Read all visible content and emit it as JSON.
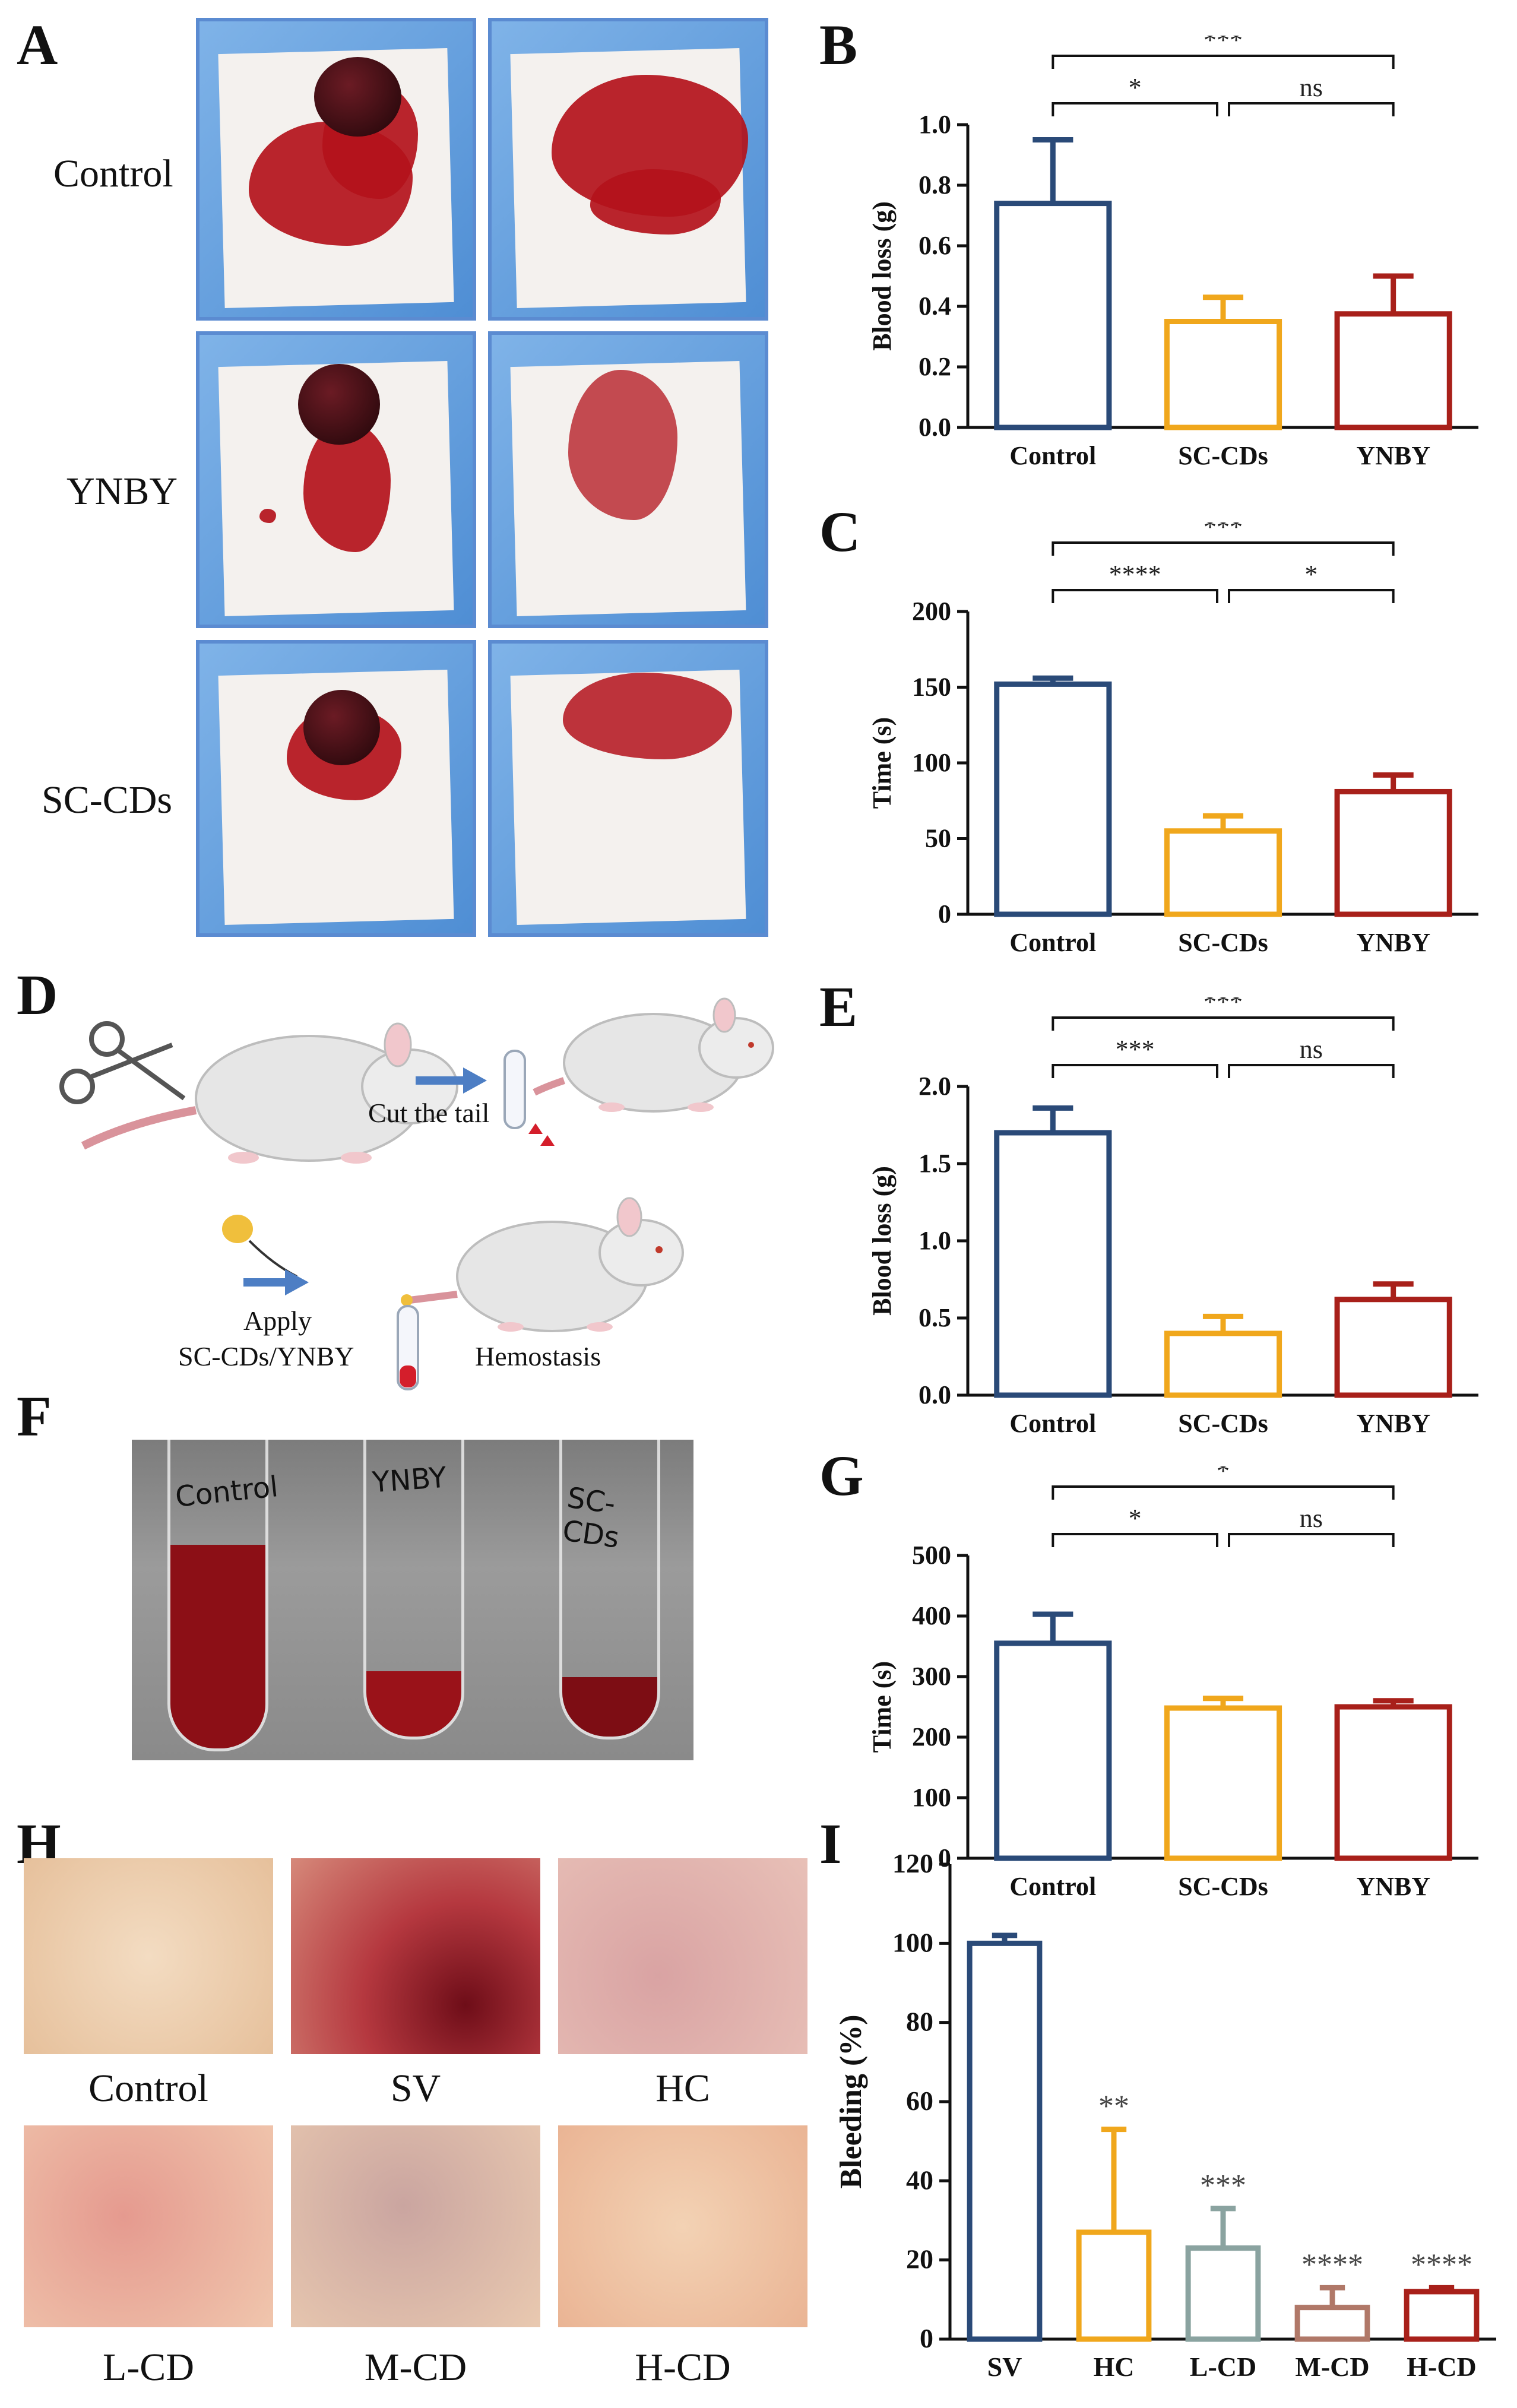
{
  "panels": {
    "A": {
      "label": "A",
      "rows": [
        {
          "label": "Control",
          "variant": "heavy"
        },
        {
          "label": "YNBY",
          "variant": "mid"
        },
        {
          "label": "SC-CDs",
          "variant": "light"
        }
      ]
    },
    "D": {
      "label": "D",
      "step1_text": "Cut the tail",
      "step2_text_line1": "Apply",
      "step2_text_line2": "SC-CDs/YNBY",
      "step3_text": "Hemostasis"
    },
    "F": {
      "label": "F",
      "tube_labels": [
        "Control",
        "YNBY",
        "SC-CDs"
      ]
    },
    "H": {
      "label": "H",
      "images": [
        {
          "label": "Control",
          "tone": "clear"
        },
        {
          "label": "SV",
          "tone": "bloody"
        },
        {
          "label": "HC",
          "tone": "pinkish"
        },
        {
          "label": "L-CD",
          "tone": "slight"
        },
        {
          "label": "M-CD",
          "tone": "slight"
        },
        {
          "label": "H-CD",
          "tone": "clear"
        }
      ]
    }
  },
  "colors": {
    "control": "#2a4a78",
    "sccds": "#f0a71c",
    "ynby": "#a8201a",
    "hc": "#f0a71c",
    "lcd": "#8aa3a0",
    "mcd": "#b07868",
    "hcd": "#a8201a"
  },
  "chart_data": [
    {
      "id": "B",
      "label": "B",
      "type": "bar",
      "categories": [
        "Control",
        "SC-CDs",
        "YNBY"
      ],
      "values": [
        0.74,
        0.35,
        0.375
      ],
      "errors": [
        0.21,
        0.08,
        0.125
      ],
      "ylabel": "Blood loss (g)",
      "ylim": [
        0,
        1.0
      ],
      "yticks": [
        "0.0",
        "0.2",
        "0.4",
        "0.6",
        "0.8",
        "1.0"
      ],
      "significance": [
        {
          "from": 0,
          "to": 1,
          "text": "*",
          "level": 1
        },
        {
          "from": 1,
          "to": 2,
          "text": "ns",
          "level": 1
        },
        {
          "from": 0,
          "to": 2,
          "text": "***",
          "level": 2
        }
      ]
    },
    {
      "id": "C",
      "label": "C",
      "type": "bar",
      "categories": [
        "Control",
        "SC-CDs",
        "YNBY"
      ],
      "values": [
        152,
        55,
        81
      ],
      "errors": [
        4,
        10,
        11
      ],
      "ylabel": "Time (s)",
      "ylim": [
        0,
        200
      ],
      "yticks": [
        "0",
        "50",
        "100",
        "150",
        "200"
      ],
      "significance": [
        {
          "from": 0,
          "to": 1,
          "text": "****",
          "level": 1
        },
        {
          "from": 1,
          "to": 2,
          "text": "*",
          "level": 1
        },
        {
          "from": 0,
          "to": 2,
          "text": "***",
          "level": 2
        }
      ]
    },
    {
      "id": "E",
      "label": "E",
      "type": "bar",
      "categories": [
        "Control",
        "SC-CDs",
        "YNBY"
      ],
      "values": [
        1.7,
        0.4,
        0.62
      ],
      "errors": [
        0.16,
        0.11,
        0.1
      ],
      "ylabel": "Blood loss (g)",
      "ylim": [
        0,
        2.0
      ],
      "yticks": [
        "0.0",
        "0.5",
        "1.0",
        "1.5",
        "2.0"
      ],
      "significance": [
        {
          "from": 0,
          "to": 1,
          "text": "***",
          "level": 1
        },
        {
          "from": 1,
          "to": 2,
          "text": "ns",
          "level": 1
        },
        {
          "from": 0,
          "to": 2,
          "text": "***",
          "level": 2
        }
      ]
    },
    {
      "id": "G",
      "label": "G",
      "type": "bar",
      "categories": [
        "Control",
        "SC-CDs",
        "YNBY"
      ],
      "values": [
        355,
        248,
        250
      ],
      "errors": [
        48,
        16,
        10
      ],
      "ylabel": "Time (s)",
      "ylim": [
        0,
        500
      ],
      "yticks": [
        "0",
        "100",
        "200",
        "300",
        "400",
        "500"
      ],
      "significance": [
        {
          "from": 0,
          "to": 1,
          "text": "*",
          "level": 1
        },
        {
          "from": 1,
          "to": 2,
          "text": "ns",
          "level": 1
        },
        {
          "from": 0,
          "to": 2,
          "text": "*",
          "level": 2
        }
      ]
    },
    {
      "id": "I",
      "label": "I",
      "type": "bar",
      "categories": [
        "SV",
        "HC",
        "L-CD",
        "M-CD",
        "H-CD"
      ],
      "values": [
        100,
        27,
        23,
        8,
        12
      ],
      "errors": [
        2,
        26,
        10,
        5,
        1
      ],
      "ylabel": "Bleeding (%)",
      "ylim": [
        0,
        120
      ],
      "yticks": [
        "0",
        "20",
        "40",
        "60",
        "80",
        "100",
        "120"
      ],
      "above_labels": [
        "",
        "**",
        "***",
        "****",
        "****"
      ],
      "significance": []
    }
  ]
}
